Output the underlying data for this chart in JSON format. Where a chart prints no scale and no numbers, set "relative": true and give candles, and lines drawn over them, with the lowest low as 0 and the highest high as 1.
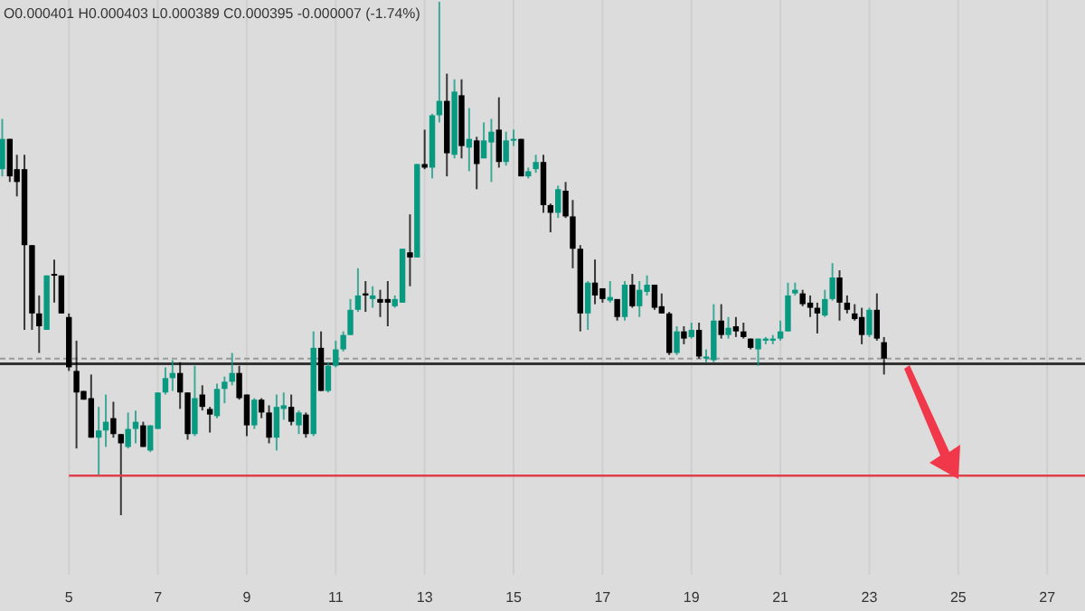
{
  "chart_data": {
    "type": "candlestick",
    "relative": true,
    "grid": "x",
    "xlim": [
      3.45,
      27.85
    ],
    "xticks": [
      5,
      7,
      9,
      11,
      13,
      15,
      17,
      19,
      21,
      23,
      25,
      27
    ],
    "annotations": [
      "O0.000401 H0.000403 L0.000389 C0.000395 -0.000007 (-1.74%)"
    ],
    "ref_lines": [
      {
        "axis": "y",
        "value": 0.295,
        "color": "#333333",
        "line_style": "solid"
      },
      {
        "axis": "y",
        "value": 0.305,
        "color": "#9a9a9a",
        "line_style": "dashed"
      }
    ],
    "series": [
      {
        "type": "candlestick",
        "x": [
          3.5,
          3.67,
          3.83,
          4,
          4.17,
          4.33,
          4.5,
          4.67,
          4.83,
          5,
          5.17,
          5.33,
          5.5,
          5.67,
          5.83,
          6,
          6.17,
          6.33,
          6.5,
          6.67,
          6.83,
          7,
          7.17,
          7.33,
          7.5,
          7.67,
          7.83,
          8,
          8.17,
          8.33,
          8.5,
          8.67,
          8.83,
          9,
          9.17,
          9.33,
          9.5,
          9.67,
          9.83,
          10,
          10.17,
          10.33,
          10.5,
          10.67,
          10.83,
          11,
          11.17,
          11.33,
          11.5,
          11.67,
          11.83,
          12,
          12.17,
          12.33,
          12.5,
          12.67,
          12.83,
          13,
          13.17,
          13.33,
          13.5,
          13.67,
          13.83,
          14,
          14.17,
          14.33,
          14.5,
          14.67,
          14.83,
          15,
          15.17,
          15.33,
          15.5,
          15.67,
          15.83,
          16,
          16.17,
          16.33,
          16.5,
          16.67,
          16.83,
          17,
          17.17,
          17.33,
          17.5,
          17.67,
          17.83,
          18,
          18.17,
          18.33,
          18.5,
          18.67,
          18.83,
          19,
          19.17,
          19.33,
          19.5,
          19.67,
          19.83,
          20,
          20.17,
          20.33,
          20.5,
          20.67,
          20.83,
          21,
          21.17,
          21.33,
          21.5,
          21.67,
          21.83,
          22,
          22.17,
          22.33,
          22.5,
          22.67,
          22.83,
          23,
          23.17,
          23.33
        ],
        "ohlc": [
          [
            0.674,
            0.772,
            0.66,
            0.733
          ],
          [
            0.733,
            0.733,
            0.649,
            0.66
          ],
          [
            0.674,
            0.702,
            0.621,
            0.649
          ],
          [
            0.674,
            0.702,
            0.361,
            0.526
          ],
          [
            0.526,
            0.526,
            0.361,
            0.393
          ],
          [
            0.393,
            0.428,
            0.316,
            0.368
          ],
          [
            0.361,
            0.467,
            0.361,
            0.467
          ],
          [
            0.47,
            0.498,
            0.414,
            0.467
          ],
          [
            0.467,
            0.467,
            0.393,
            0.393
          ],
          [
            0.386,
            0.393,
            0.281,
            0.288
          ],
          [
            0.281,
            0.34,
            0.13,
            0.239
          ],
          [
            0.242,
            0.242,
            0.225,
            0.225
          ],
          [
            0.228,
            0.274,
            0.151,
            0.151
          ],
          [
            0.151,
            0.211,
            0.077,
            0.165
          ],
          [
            0.165,
            0.235,
            0.133,
            0.182
          ],
          [
            0.189,
            0.221,
            0.151,
            0.158
          ],
          [
            0.158,
            0.158,
            0,
            0.14
          ],
          [
            0.133,
            0.2,
            0.13,
            0.168
          ],
          [
            0.168,
            0.204,
            0.14,
            0.182
          ],
          [
            0.175,
            0.182,
            0.133,
            0.133
          ],
          [
            0.126,
            0.175,
            0.123,
            0.175
          ],
          [
            0.168,
            0.239,
            0.168,
            0.239
          ],
          [
            0.239,
            0.288,
            0.235,
            0.267
          ],
          [
            0.267,
            0.302,
            0.242,
            0.277
          ],
          [
            0.277,
            0.298,
            0.207,
            0.239
          ],
          [
            0.239,
            0.239,
            0.147,
            0.158
          ],
          [
            0.158,
            0.291,
            0.154,
            0.228
          ],
          [
            0.235,
            0.253,
            0.204,
            0.211
          ],
          [
            0.207,
            0.211,
            0.161,
            0.196
          ],
          [
            0.193,
            0.256,
            0.189,
            0.246
          ],
          [
            0.246,
            0.27,
            0.218,
            0.26
          ],
          [
            0.26,
            0.316,
            0.253,
            0.277
          ],
          [
            0.277,
            0.291,
            0.225,
            0.228
          ],
          [
            0.235,
            0.235,
            0.154,
            0.175
          ],
          [
            0.175,
            0.228,
            0.168,
            0.225
          ],
          [
            0.225,
            0.228,
            0.189,
            0.2
          ],
          [
            0.2,
            0.214,
            0.14,
            0.151
          ],
          [
            0.151,
            0.235,
            0.126,
            0.211
          ],
          [
            0.207,
            0.239,
            0.186,
            0.214
          ],
          [
            0.211,
            0.235,
            0.175,
            0.182
          ],
          [
            0.175,
            0.204,
            0.158,
            0.2
          ],
          [
            0.196,
            0.2,
            0.151,
            0.158
          ],
          [
            0.158,
            0.358,
            0.154,
            0.326
          ],
          [
            0.326,
            0.358,
            0.242,
            0.242
          ],
          [
            0.242,
            0.298,
            0.239,
            0.291
          ],
          [
            0.291,
            0.34,
            0.288,
            0.323
          ],
          [
            0.323,
            0.358,
            0.319,
            0.351
          ],
          [
            0.351,
            0.421,
            0.351,
            0.4
          ],
          [
            0.4,
            0.481,
            0.396,
            0.428
          ],
          [
            0.432,
            0.456,
            0.396,
            0.428
          ],
          [
            0.421,
            0.446,
            0.404,
            0.428
          ],
          [
            0.421,
            0.439,
            0.386,
            0.414
          ],
          [
            0.421,
            0.456,
            0.368,
            0.414
          ],
          [
            0.407,
            0.428,
            0.404,
            0.421
          ],
          [
            0.414,
            0.519,
            0.414,
            0.519
          ],
          [
            0.512,
            0.586,
            0.446,
            0.502
          ],
          [
            0.502,
            0.684,
            0.502,
            0.684
          ],
          [
            0.684,
            0.751,
            0.674,
            0.677
          ],
          [
            0.677,
            0.782,
            0.656,
            0.779
          ],
          [
            0.779,
            1,
            0.765,
            0.807
          ],
          [
            0.807,
            0.86,
            0.66,
            0.705
          ],
          [
            0.702,
            0.849,
            0.695,
            0.825
          ],
          [
            0.818,
            0.849,
            0.695,
            0.719
          ],
          [
            0.716,
            0.793,
            0.67,
            0.733
          ],
          [
            0.73,
            0.737,
            0.635,
            0.684
          ],
          [
            0.695,
            0.765,
            0.695,
            0.73
          ],
          [
            0.726,
            0.772,
            0.649,
            0.747
          ],
          [
            0.751,
            0.814,
            0.677,
            0.688
          ],
          [
            0.688,
            0.747,
            0.681,
            0.73
          ],
          [
            0.73,
            0.751,
            0.719,
            0.733
          ],
          [
            0.733,
            0.733,
            0.66,
            0.66
          ],
          [
            0.66,
            0.677,
            0.656,
            0.67
          ],
          [
            0.674,
            0.702,
            0.667,
            0.688
          ],
          [
            0.688,
            0.702,
            0.589,
            0.604
          ],
          [
            0.604,
            0.607,
            0.551,
            0.589
          ],
          [
            0.589,
            0.642,
            0.579,
            0.635
          ],
          [
            0.632,
            0.649,
            0.579,
            0.582
          ],
          [
            0.582,
            0.614,
            0.481,
            0.519
          ],
          [
            0.519,
            0.526,
            0.358,
            0.393
          ],
          [
            0.393,
            0.456,
            0.361,
            0.453
          ],
          [
            0.453,
            0.498,
            0.411,
            0.428
          ],
          [
            0.442,
            0.442,
            0.414,
            0.421
          ],
          [
            0.418,
            0.456,
            0.414,
            0.425
          ],
          [
            0.421,
            0.421,
            0.379,
            0.386
          ],
          [
            0.386,
            0.456,
            0.379,
            0.449
          ],
          [
            0.449,
            0.47,
            0.404,
            0.407
          ],
          [
            0.407,
            0.456,
            0.386,
            0.439
          ],
          [
            0.435,
            0.467,
            0.428,
            0.449
          ],
          [
            0.449,
            0.449,
            0.4,
            0.404
          ],
          [
            0.407,
            0.432,
            0.393,
            0.393
          ],
          [
            0.393,
            0.396,
            0.312,
            0.316
          ],
          [
            0.316,
            0.368,
            0.312,
            0.358
          ],
          [
            0.358,
            0.368,
            0.333,
            0.344
          ],
          [
            0.347,
            0.375,
            0.344,
            0.361
          ],
          [
            0.361,
            0.375,
            0.305,
            0.309
          ],
          [
            0.305,
            0.323,
            0.298,
            0.309
          ],
          [
            0.302,
            0.411,
            0.298,
            0.379
          ],
          [
            0.379,
            0.411,
            0.344,
            0.351
          ],
          [
            0.351,
            0.386,
            0.344,
            0.365
          ],
          [
            0.368,
            0.386,
            0.347,
            0.358
          ],
          [
            0.358,
            0.375,
            0.344,
            0.347
          ],
          [
            0.344,
            0.344,
            0.323,
            0.326
          ],
          [
            0.323,
            0.344,
            0.291,
            0.344
          ],
          [
            0.34,
            0.347,
            0.333,
            0.344
          ],
          [
            0.34,
            0.351,
            0.333,
            0.344
          ],
          [
            0.344,
            0.379,
            0.34,
            0.358
          ],
          [
            0.358,
            0.453,
            0.358,
            0.428
          ],
          [
            0.432,
            0.453,
            0.428,
            0.439
          ],
          [
            0.432,
            0.439,
            0.407,
            0.411
          ],
          [
            0.414,
            0.428,
            0.386,
            0.404
          ],
          [
            0.404,
            0.414,
            0.354,
            0.393
          ],
          [
            0.389,
            0.439,
            0.386,
            0.421
          ],
          [
            0.421,
            0.491,
            0.418,
            0.463
          ],
          [
            0.463,
            0.477,
            0.379,
            0.414
          ],
          [
            0.414,
            0.428,
            0.393,
            0.4
          ],
          [
            0.393,
            0.411,
            0.379,
            0.382
          ],
          [
            0.386,
            0.404,
            0.333,
            0.351
          ],
          [
            0.351,
            0.404,
            0.347,
            0.4
          ],
          [
            0.4,
            0.432,
            0.34,
            0.344
          ],
          [
            0.337,
            0.347,
            0.274,
            0.305
          ]
        ],
        "colors": [
          "#089981",
          "#000000",
          "#000000",
          "#000000",
          "#000000",
          "#000000",
          "#089981",
          "#000000",
          "#000000",
          "#000000",
          "#000000",
          "#000000",
          "#000000",
          "#089981",
          "#089981",
          "#000000",
          "#000000",
          "#089981",
          "#089981",
          "#000000",
          "#089981",
          "#089981",
          "#089981",
          "#089981",
          "#000000",
          "#000000",
          "#089981",
          "#000000",
          "#000000",
          "#089981",
          "#089981",
          "#089981",
          "#000000",
          "#000000",
          "#089981",
          "#000000",
          "#000000",
          "#089981",
          "#089981",
          "#000000",
          "#089981",
          "#000000",
          "#089981",
          "#000000",
          "#089981",
          "#089981",
          "#089981",
          "#089981",
          "#089981",
          "#000000",
          "#089981",
          "#000000",
          "#000000",
          "#089981",
          "#089981",
          "#000000",
          "#089981",
          "#000000",
          "#089981",
          "#089981",
          "#000000",
          "#089981",
          "#000000",
          "#089981",
          "#000000",
          "#089981",
          "#089981",
          "#000000",
          "#089981",
          "#089981",
          "#000000",
          "#089981",
          "#089981",
          "#000000",
          "#000000",
          "#089981",
          "#000000",
          "#000000",
          "#000000",
          "#089981",
          "#000000",
          "#000000",
          "#089981",
          "#000000",
          "#089981",
          "#000000",
          "#089981",
          "#089981",
          "#000000",
          "#000000",
          "#000000",
          "#089981",
          "#000000",
          "#089981",
          "#000000",
          "#089981",
          "#089981",
          "#000000",
          "#089981",
          "#000000",
          "#000000",
          "#000000",
          "#089981",
          "#089981",
          "#089981",
          "#089981",
          "#089981",
          "#089981",
          "#000000",
          "#000000",
          "#000000",
          "#089981",
          "#089981",
          "#000000",
          "#000000",
          "#000000",
          "#000000",
          "#089981",
          "#000000",
          "#000000"
        ]
      },
      {
        "type": "line",
        "color": "#e0404a",
        "x": [
          5,
          27.85
        ],
        "values": [
          0.077,
          0.077
        ]
      }
    ]
  }
}
